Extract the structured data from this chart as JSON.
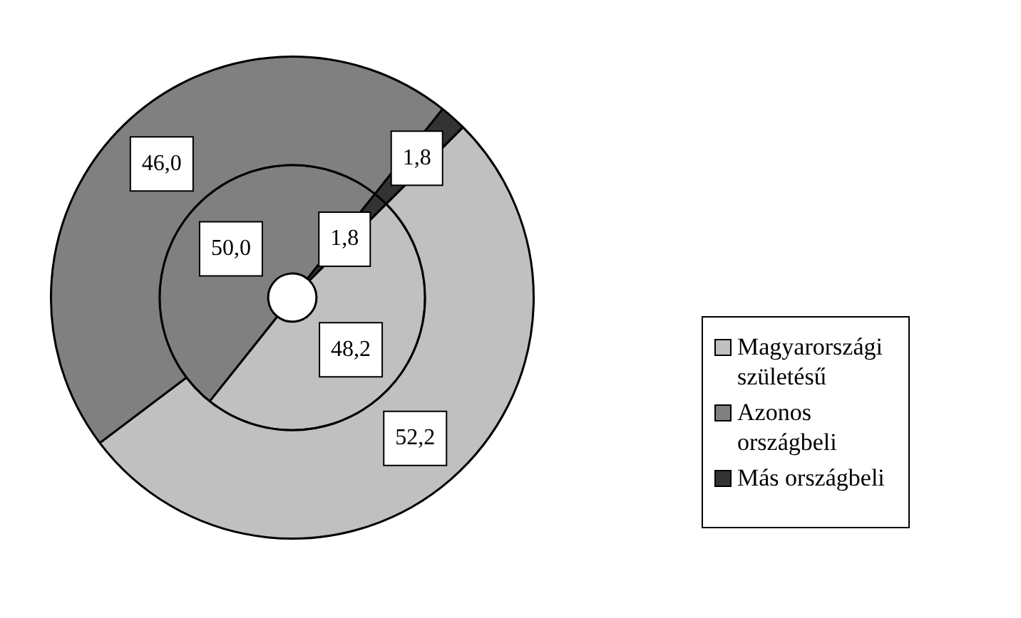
{
  "chart_data": {
    "type": "donut",
    "categories": [
      "Magyarországi születésű",
      "Azonos országbeli",
      "Más országbeli"
    ],
    "series": [
      {
        "values": [
          52.2,
          46.0,
          1.8
        ],
        "value_labels": [
          "52,2",
          "46,0",
          "1,8"
        ],
        "colors": [
          "#c0c0c0",
          "#808080",
          "#333333"
        ]
      },
      {
        "values": [
          48.2,
          50.0,
          1.8
        ],
        "value_labels": [
          "48,2",
          "50,0",
          "1,8"
        ],
        "colors": [
          "#c0c0c0",
          "#808080",
          "#333333"
        ]
      }
    ],
    "legend": "right"
  }
}
